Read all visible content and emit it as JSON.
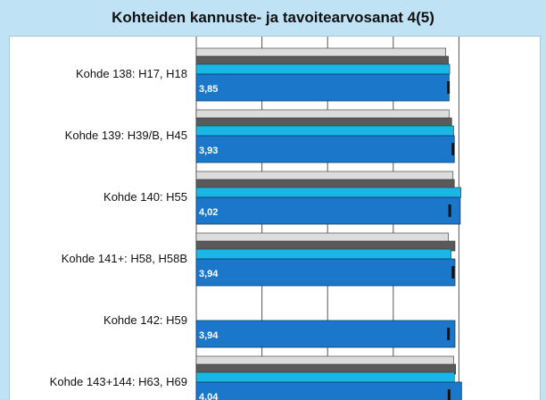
{
  "chart_data": {
    "type": "bar",
    "orientation": "horizontal",
    "title": "Kohteiden kannuste- ja tavoitearvosanat 4(5)",
    "xlim": [
      0,
      4.2
    ],
    "x_gridlines": [
      1.0,
      2.0,
      3.0,
      4.0
    ],
    "categories": [
      "Kohde 138: H17, H18",
      "Kohde 139: H39/B, H45",
      "Kohde 140: H55",
      "Kohde 141+: H58, H58B",
      "Kohde 142: H59",
      "Kohde 143+144: H63, H69"
    ],
    "series": [
      {
        "values": [
          3.8,
          3.85,
          3.91,
          3.84,
          null,
          3.92
        ],
        "color": "#dcdcdc"
      },
      {
        "values": [
          3.84,
          3.89,
          3.93,
          3.94,
          null,
          3.95
        ],
        "color": "#5a5a5a"
      },
      {
        "values": [
          3.86,
          3.92,
          4.03,
          3.88,
          null,
          3.93
        ],
        "color": "#19b6e6"
      },
      {
        "values": [
          3.85,
          3.93,
          4.02,
          3.94,
          3.94,
          4.04
        ],
        "color": "#1a77c9",
        "labels": [
          "3,85",
          "3,93",
          "4,02",
          "3,94",
          "3,94",
          "4,04"
        ]
      }
    ],
    "target_markers": [
      3.84,
      3.91,
      3.86,
      3.91,
      3.84,
      3.85
    ],
    "marker_color": "#111111"
  }
}
